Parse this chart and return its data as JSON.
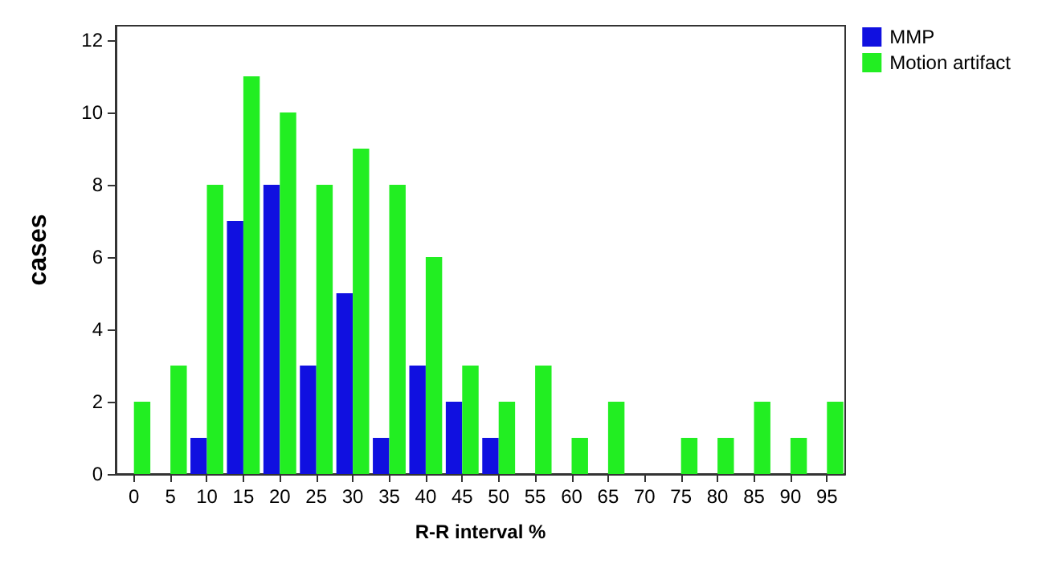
{
  "chart_data": {
    "type": "bar",
    "xlabel": "R-R interval %",
    "ylabel": "cases",
    "categories": [
      "0",
      "5",
      "10",
      "15",
      "20",
      "25",
      "30",
      "35",
      "40",
      "45",
      "50",
      "55",
      "60",
      "65",
      "70",
      "75",
      "80",
      "85",
      "90",
      "95"
    ],
    "series": [
      {
        "name": "MMP",
        "color": "#1010e0",
        "values": [
          0,
          0,
          1,
          7,
          8,
          3,
          5,
          1,
          3,
          2,
          1,
          0,
          0,
          0,
          0,
          0,
          0,
          0,
          0,
          0
        ]
      },
      {
        "name": "Motion artifact",
        "color": "#22ee22",
        "values": [
          2,
          3,
          8,
          11,
          10,
          8,
          9,
          8,
          6,
          3,
          2,
          3,
          1,
          2,
          0,
          1,
          1,
          2,
          1,
          2
        ]
      }
    ],
    "ylim": [
      0,
      12.4
    ],
    "yticks": [
      0,
      2,
      4,
      6,
      8,
      10,
      12
    ],
    "grid": false,
    "legend": "top right"
  }
}
